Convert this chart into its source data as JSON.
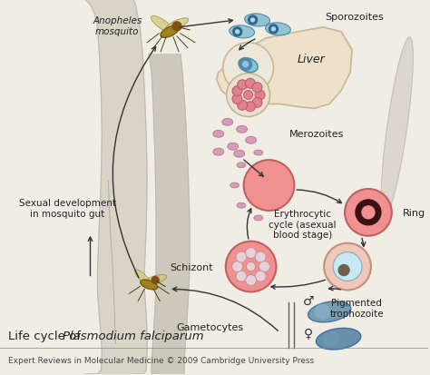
{
  "bg_color": "#f0ede5",
  "silhouette_color": "#d8d4c8",
  "silhouette_edge": "#c0bab0",
  "liver_color": "#ede0c8",
  "liver_edge": "#c8b898",
  "arrow_color": "#333333",
  "text_color": "#222222",
  "erythrocyte_fill": "#e87878",
  "erythrocyte_edge": "#c05050",
  "schizont_fill": "#e87878",
  "ring_outer": "#e87878",
  "ring_dark": "#3a1010",
  "pigmented_outer": "#f0c8b8",
  "pigmented_inner": "#c8e8f0",
  "pigmented_dot": "#705040",
  "merozoite_color": "#c878a0",
  "sporozoite_fill": "#88c0d0",
  "sporozoite_eye": "#336688",
  "gametocyte_male": "#6090a8",
  "gametocyte_female": "#5080a0",
  "liver_cell1_fill": "#e8e0d0",
  "liver_cell1_edge": "#c0a880",
  "liver_cell2_fill": "#d8d0c0",
  "schizont_inner": "#e8d0d8",
  "labels": {
    "anopheles": "Anopheles\nmosquito",
    "sporozoites": "Sporozoites",
    "liver": "Liver",
    "merozoites": "Merozoites",
    "erythrocytic": "Erythrocytic\ncycle (asexual\nblood stage)",
    "ring": "Ring",
    "pigmented": "Pigmented\ntrophozoite",
    "schizont": "Schizont",
    "gametocytes": "Gametocytes",
    "sexual_dev": "Sexual development\nin mosquito gut",
    "title_plain": "Life cycle of ",
    "title_italic": "Plasmodium falciparum",
    "subtitle": "Expert Reviews in Molecular Medicine © 2009 Cambridge University Press"
  }
}
